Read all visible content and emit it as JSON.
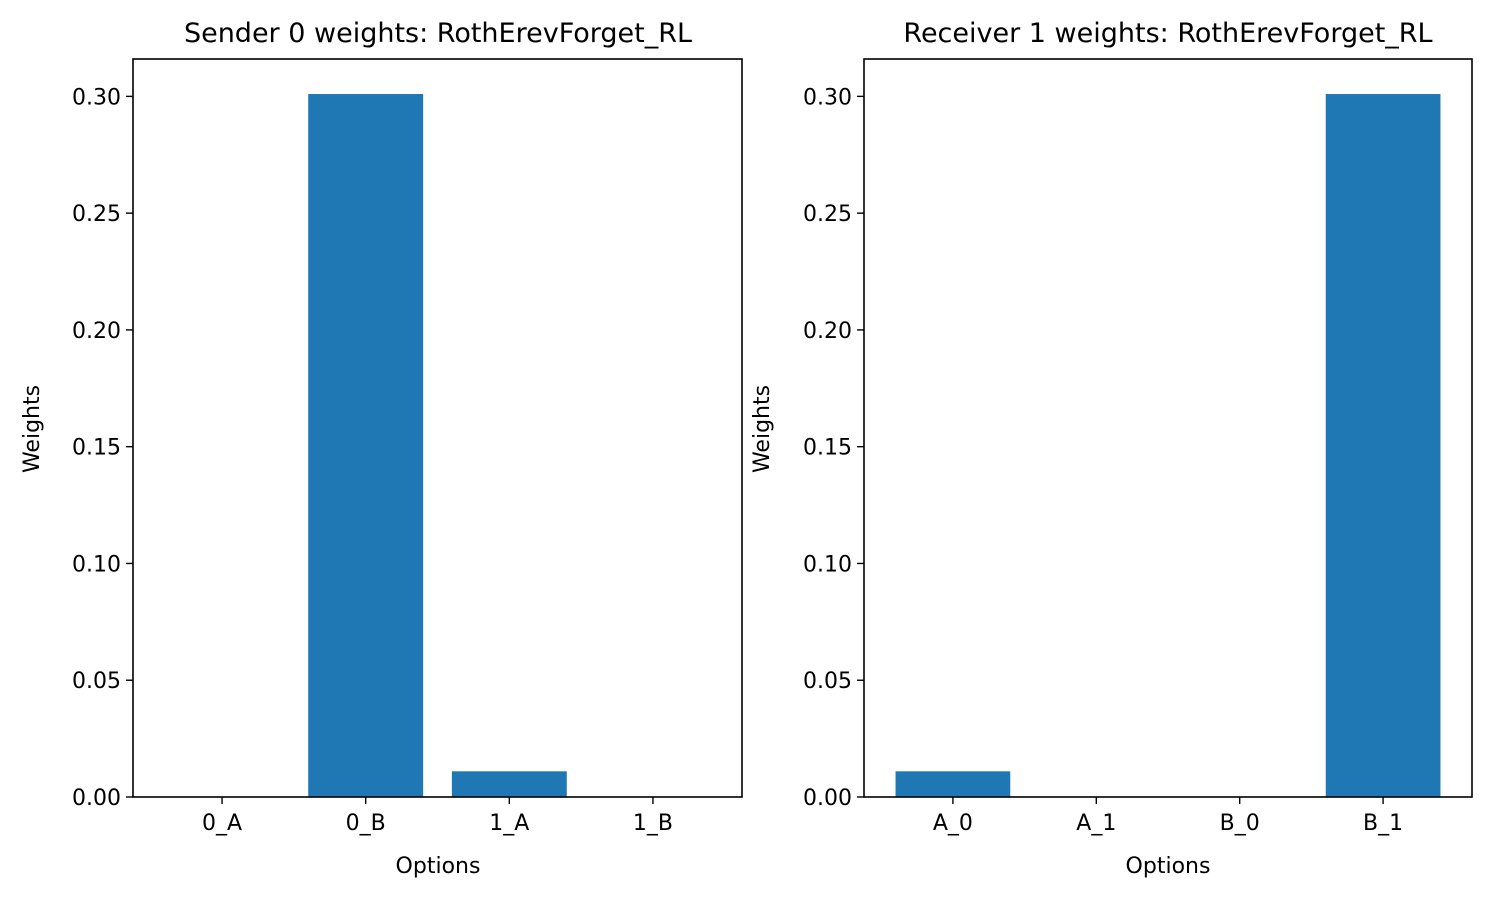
{
  "chart_data": [
    {
      "type": "bar",
      "title": "Sender 0 weights: RothErevForget_RL",
      "xlabel": "Options",
      "ylabel": "Weights",
      "categories": [
        "0_A",
        "0_B",
        "1_A",
        "1_B"
      ],
      "values": [
        0.0,
        0.301,
        0.011,
        0.0
      ],
      "ylim": [
        0,
        0.316
      ],
      "yticks": [
        "0.00",
        "0.05",
        "0.10",
        "0.15",
        "0.20",
        "0.25",
        "0.30"
      ],
      "bar_color": "#1f77b4",
      "grid": false
    },
    {
      "type": "bar",
      "title": "Receiver 1 weights: RothErevForget_RL",
      "xlabel": "Options",
      "ylabel": "Weights",
      "categories": [
        "A_0",
        "A_1",
        "B_0",
        "B_1"
      ],
      "values": [
        0.011,
        0.0,
        0.0,
        0.301
      ],
      "ylim": [
        0,
        0.316
      ],
      "yticks": [
        "0.00",
        "0.05",
        "0.10",
        "0.15",
        "0.20",
        "0.25",
        "0.30"
      ],
      "bar_color": "#1f77b4",
      "grid": false
    }
  ]
}
